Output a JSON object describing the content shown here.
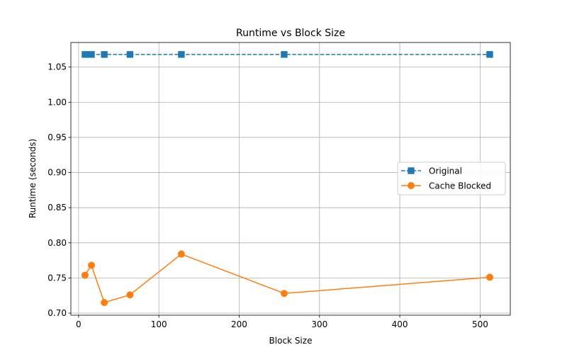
{
  "chart_data": {
    "type": "line",
    "title": "Runtime vs Block Size",
    "xlabel": "Block Size",
    "ylabel": "Runtime (seconds)",
    "xlim": [
      -9.6,
      537.6
    ],
    "ylim": [
      0.697,
      1.085
    ],
    "x_ticks": [
      0,
      100,
      200,
      300,
      400,
      500
    ],
    "y_ticks": [
      0.7,
      0.75,
      0.8,
      0.85,
      0.9,
      0.95,
      1.0,
      1.05
    ],
    "grid": true,
    "legend_position": "center-right",
    "series": [
      {
        "name": "Original",
        "color": "#1f77b4",
        "line_style": "dashed",
        "marker": "square",
        "x": [
          8,
          16,
          32,
          64,
          128,
          256,
          512
        ],
        "y": [
          1.068,
          1.068,
          1.068,
          1.068,
          1.068,
          1.068,
          1.068
        ]
      },
      {
        "name": "Cache Blocked",
        "color": "#ff7f0e",
        "line_style": "solid",
        "marker": "circle",
        "x": [
          8,
          16,
          32,
          64,
          128,
          256,
          512
        ],
        "y": [
          0.754,
          0.768,
          0.715,
          0.726,
          0.784,
          0.728,
          0.751
        ]
      }
    ]
  }
}
